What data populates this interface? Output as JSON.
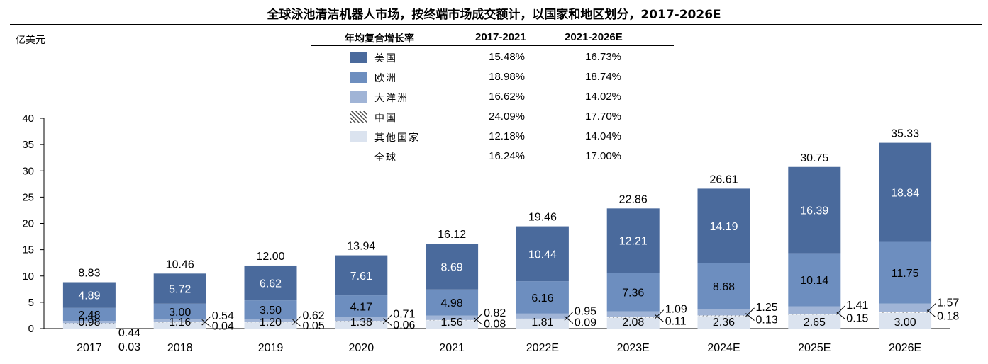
{
  "title": "全球泳池清洁机器人市场，按终端市场成交额计，以国家和地区划分，2017-2026E",
  "unit": "亿美元",
  "colors": {
    "us": "#4a6a9c",
    "europe": "#6d8ebf",
    "oceania": "#a0b4d6",
    "china": "#ffffff",
    "other": "#dbe3ef",
    "hatch": "#555555"
  },
  "cagr_table": {
    "header_label": "年均复合增长率",
    "periods": [
      "2017-2021",
      "2021-2026E"
    ],
    "rows": [
      {
        "name": "美国",
        "swatch": "us",
        "values": [
          "15.48%",
          "16.73%"
        ]
      },
      {
        "name": "欧洲",
        "swatch": "europe",
        "values": [
          "18.98%",
          "18.74%"
        ]
      },
      {
        "name": "大洋洲",
        "swatch": "oceania",
        "values": [
          "16.62%",
          "14.02%"
        ]
      },
      {
        "name": "中国",
        "swatch": "china",
        "values": [
          "24.09%",
          "17.70%"
        ]
      },
      {
        "name": "其他国家",
        "swatch": "other",
        "values": [
          "12.18%",
          "14.04%"
        ]
      },
      {
        "name": "全球",
        "swatch": "",
        "values": [
          "16.24%",
          "17.00%"
        ]
      }
    ]
  },
  "chart_data": {
    "type": "bar",
    "stacked": true,
    "title": "全球泳池清洁机器人市场，按终端市场成交额计，以国家和地区划分，2017-2026E",
    "ylabel": "亿美元",
    "ylim": [
      0,
      40
    ],
    "yticks": [
      "0",
      "5",
      "10",
      "15",
      "20",
      "25",
      "30",
      "35",
      "40"
    ],
    "categories": [
      "2017",
      "2018",
      "2019",
      "2020",
      "2021",
      "2022E",
      "2023E",
      "2024E",
      "2025E",
      "2026E"
    ],
    "series": [
      {
        "name": "其他国家",
        "key": "other",
        "values": [
          0.98,
          1.16,
          1.2,
          1.38,
          1.56,
          1.81,
          2.08,
          2.36,
          2.65,
          3.0
        ],
        "labels": [
          "0.98",
          "1.16",
          "1.20",
          "1.38",
          "1.56",
          "1.81",
          "2.08",
          "2.36",
          "2.65",
          "3.00"
        ]
      },
      {
        "name": "中国",
        "key": "china",
        "values": [
          0.03,
          0.04,
          0.05,
          0.06,
          0.08,
          0.09,
          0.11,
          0.13,
          0.15,
          0.18
        ],
        "labels": [
          "0.03",
          "0.04",
          "0.05",
          "0.06",
          "0.08",
          "0.09",
          "0.11",
          "0.13",
          "0.15",
          "0.18"
        ]
      },
      {
        "name": "大洋洲",
        "key": "oceania",
        "values": [
          0.44,
          0.54,
          0.62,
          0.71,
          0.82,
          0.95,
          1.09,
          1.25,
          1.41,
          1.57
        ],
        "labels": [
          "0.44",
          "0.54",
          "0.62",
          "0.71",
          "0.82",
          "0.95",
          "1.09",
          "1.25",
          "1.41",
          "1.57"
        ]
      },
      {
        "name": "欧洲",
        "key": "europe",
        "values": [
          2.48,
          3.0,
          3.5,
          4.17,
          4.98,
          6.16,
          7.36,
          8.68,
          10.14,
          11.75
        ],
        "labels": [
          "2.48",
          "3.00",
          "3.50",
          "4.17",
          "4.98",
          "6.16",
          "7.36",
          "8.68",
          "10.14",
          "11.75"
        ]
      },
      {
        "name": "美国",
        "key": "us",
        "values": [
          4.89,
          5.72,
          6.62,
          7.61,
          8.69,
          10.44,
          12.21,
          14.19,
          16.39,
          18.84
        ],
        "labels": [
          "4.89",
          "5.72",
          "6.62",
          "7.61",
          "8.69",
          "10.44",
          "12.21",
          "14.19",
          "16.39",
          "18.84"
        ]
      }
    ],
    "totals": [
      "8.83",
      "10.46",
      "12.00",
      "13.94",
      "16.12",
      "19.46",
      "22.86",
      "26.61",
      "30.75",
      "35.33"
    ],
    "grid": false,
    "legend": "top-center table"
  }
}
